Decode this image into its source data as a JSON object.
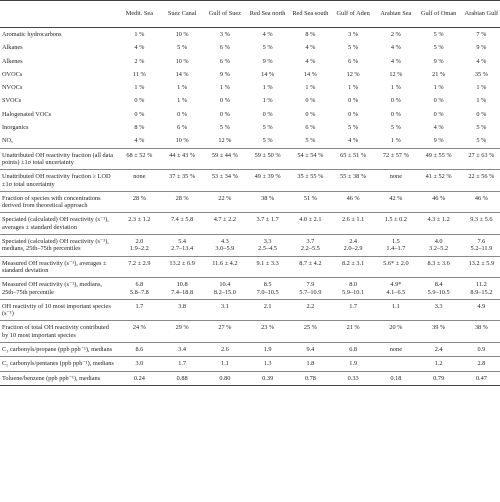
{
  "table": {
    "columns": [
      "",
      "Medit. Sea",
      "Suez Canal",
      "Gulf of Suez",
      "Red Sea north",
      "Red Sea south",
      "Gulf of Aden",
      "Arabian Sea",
      "Gulf of Oman",
      "Arabian Gulf"
    ],
    "rows": [
      {
        "label": "Aromatic hydrocarbons",
        "values": [
          "1 %",
          "10 %",
          "3 %",
          "4 %",
          "8 %",
          "3 %",
          "2 %",
          "5 %",
          "7 %"
        ]
      },
      {
        "label": "Alkanes",
        "values": [
          "4 %",
          "5 %",
          "6 %",
          "5 %",
          "4 %",
          "5 %",
          "4 %",
          "5 %",
          "9 %"
        ]
      },
      {
        "label": "Alkenes",
        "values": [
          "2 %",
          "10 %",
          "6 %",
          "9 %",
          "4 %",
          "6 %",
          "4 %",
          "9 %",
          "4 %"
        ]
      },
      {
        "label": "OVOCs",
        "values": [
          "11 %",
          "14 %",
          "9 %",
          "14 %",
          "14 %",
          "12 %",
          "12 %",
          "21 %",
          "35 %"
        ]
      },
      {
        "label": "NVOCs",
        "values": [
          "1 %",
          "1 %",
          "1 %",
          "1 %",
          "1 %",
          "1 %",
          "1 %",
          "1 %",
          "1 %"
        ]
      },
      {
        "label": "SVOCs",
        "values": [
          "0 %",
          "1 %",
          "0 %",
          "1 %",
          "0 %",
          "0 %",
          "0 %",
          "0 %",
          "1 %"
        ]
      },
      {
        "label": "Halogenated VOCs",
        "values": [
          "0 %",
          "0 %",
          "0 %",
          "0 %",
          "0 %",
          "0 %",
          "0 %",
          "0 %",
          "0 %"
        ]
      },
      {
        "label": "Inorganics",
        "values": [
          "8 %",
          "6 %",
          "5 %",
          "5 %",
          "6 %",
          "5 %",
          "5 %",
          "4 %",
          "5 %"
        ]
      },
      {
        "label": "NOₓ",
        "values": [
          "4 %",
          "10 %",
          "12 %",
          "5 %",
          "5 %",
          "4 %",
          "1 %",
          "9 %",
          "5 %"
        ]
      },
      {
        "label": "Unattributed OH reactivity fraction (all data points) ±1σ total uncertainty",
        "values": [
          "68 ± 52 %",
          "44 ± 43 %",
          "59 ± 44 %",
          "59 ± 50 %",
          "54 ± 54 %",
          "65 ± 51 %",
          "72 ± 57 %",
          "49 ± 55 %",
          "27 ± 63 %"
        ]
      },
      {
        "label": "Unattributed OH reactivity fraction ≥ LOD ±1σ total uncertainty",
        "values": [
          "none",
          "37 ± 35 %",
          "53 ± 34 %",
          "49 ± 39 %",
          "35 ± 55 %",
          "55 ± 38 %",
          "none",
          "41 ± 52 %",
          "22 ± 56 %"
        ]
      },
      {
        "label": "Fraction of species with concentrations derived from theoretical approach",
        "values": [
          "28 %",
          "28 %",
          "22 %",
          "38 %",
          "51 %",
          "46 %",
          "42 %",
          "46 %",
          "46 %"
        ]
      },
      {
        "label": "Speciated (calculated) OH reactivity (s⁻¹), averages ± standard deviation",
        "values": [
          "2.3 ± 1.2",
          "7.4 ± 5.8",
          "4.7 ± 2.2",
          "3.7 ± 1.7",
          "4.0 ± 2.1",
          "2.6 ± 1.1",
          "1.5 ± 0.2",
          "4.3 ± 1.2",
          "9.3 ± 5.6"
        ]
      },
      {
        "label": "Speciated (calculated) OH reactivity (s⁻¹), medians, 25th–75th percentiles",
        "values": [
          "2.0\n1.9–2.2",
          "5.4\n2.7–13.4",
          "4.3\n3.0–5.9",
          "3.3\n2.5–4.5",
          "3.7\n2.2–5.5",
          "2.4\n2.0–2.9",
          "1.5\n1.4–1.7",
          "4.0\n3.2–5.2",
          "7.6\n5.2–11.9"
        ]
      },
      {
        "label": "Measured OH reactivity (s⁻¹), averages ± standard deviation",
        "values": [
          "7.2 ± 2.9",
          "13.2 ± 6.9",
          "11.6 ± 4.2",
          "9.1 ± 3.3",
          "8.7 ± 4.2",
          "8.2 ± 3.1",
          "5.6* ± 2.0",
          "8.3 ± 3.6",
          "13.2 ± 5.9"
        ]
      },
      {
        "label": "Measured OH reactivity (s⁻¹), medians, 25th–75th percentile",
        "values": [
          "6.8\n5.8–7.8",
          "10.8\n7.4–18.8",
          "10.4\n8.2–15.0",
          "8.5\n7.0–10.5",
          "7.9\n5.7–10.9",
          "8.0\n5.9–10.1",
          "4.9*\n4.1–6.5",
          "8.4\n5.9–10.5",
          "11.2\n8.9–15.2"
        ]
      },
      {
        "label": "OH reactivity of 10 most important species (s⁻¹)",
        "values": [
          "1.7",
          "3.8",
          "3.1",
          "2.1",
          "2.2",
          "1.7",
          "1.1",
          "3.3",
          "4.9"
        ]
      },
      {
        "label": "Fraction of total OH reactivity contributed by 10 most important species",
        "values": [
          "24 %",
          "29 %",
          "27 %",
          "23 %",
          "25 %",
          "21 %",
          "20 %",
          "39 %",
          "38 %"
        ]
      },
      {
        "label": "C₃ carbonyls/propane (ppb ppb⁻¹), medians",
        "values": [
          "8.6",
          "3.4",
          "2.6",
          "1.9",
          "9.4",
          "6.8",
          "none",
          "2.4",
          "0.9"
        ]
      },
      {
        "label": "C₅ carbonyls/pentanes (ppb ppb⁻¹), medians",
        "values": [
          "3.0",
          "1.7",
          "1.1",
          "1.3",
          "1.8",
          "1.9",
          "",
          "1.2",
          "2.8"
        ]
      },
      {
        "label": "Toluene/benzene (ppb ppb⁻¹), medians",
        "values": [
          "0.24",
          "0.88",
          "0.80",
          "0.39",
          "0.78",
          "0.33",
          "0.18",
          "0.79",
          "0.47"
        ]
      }
    ]
  }
}
